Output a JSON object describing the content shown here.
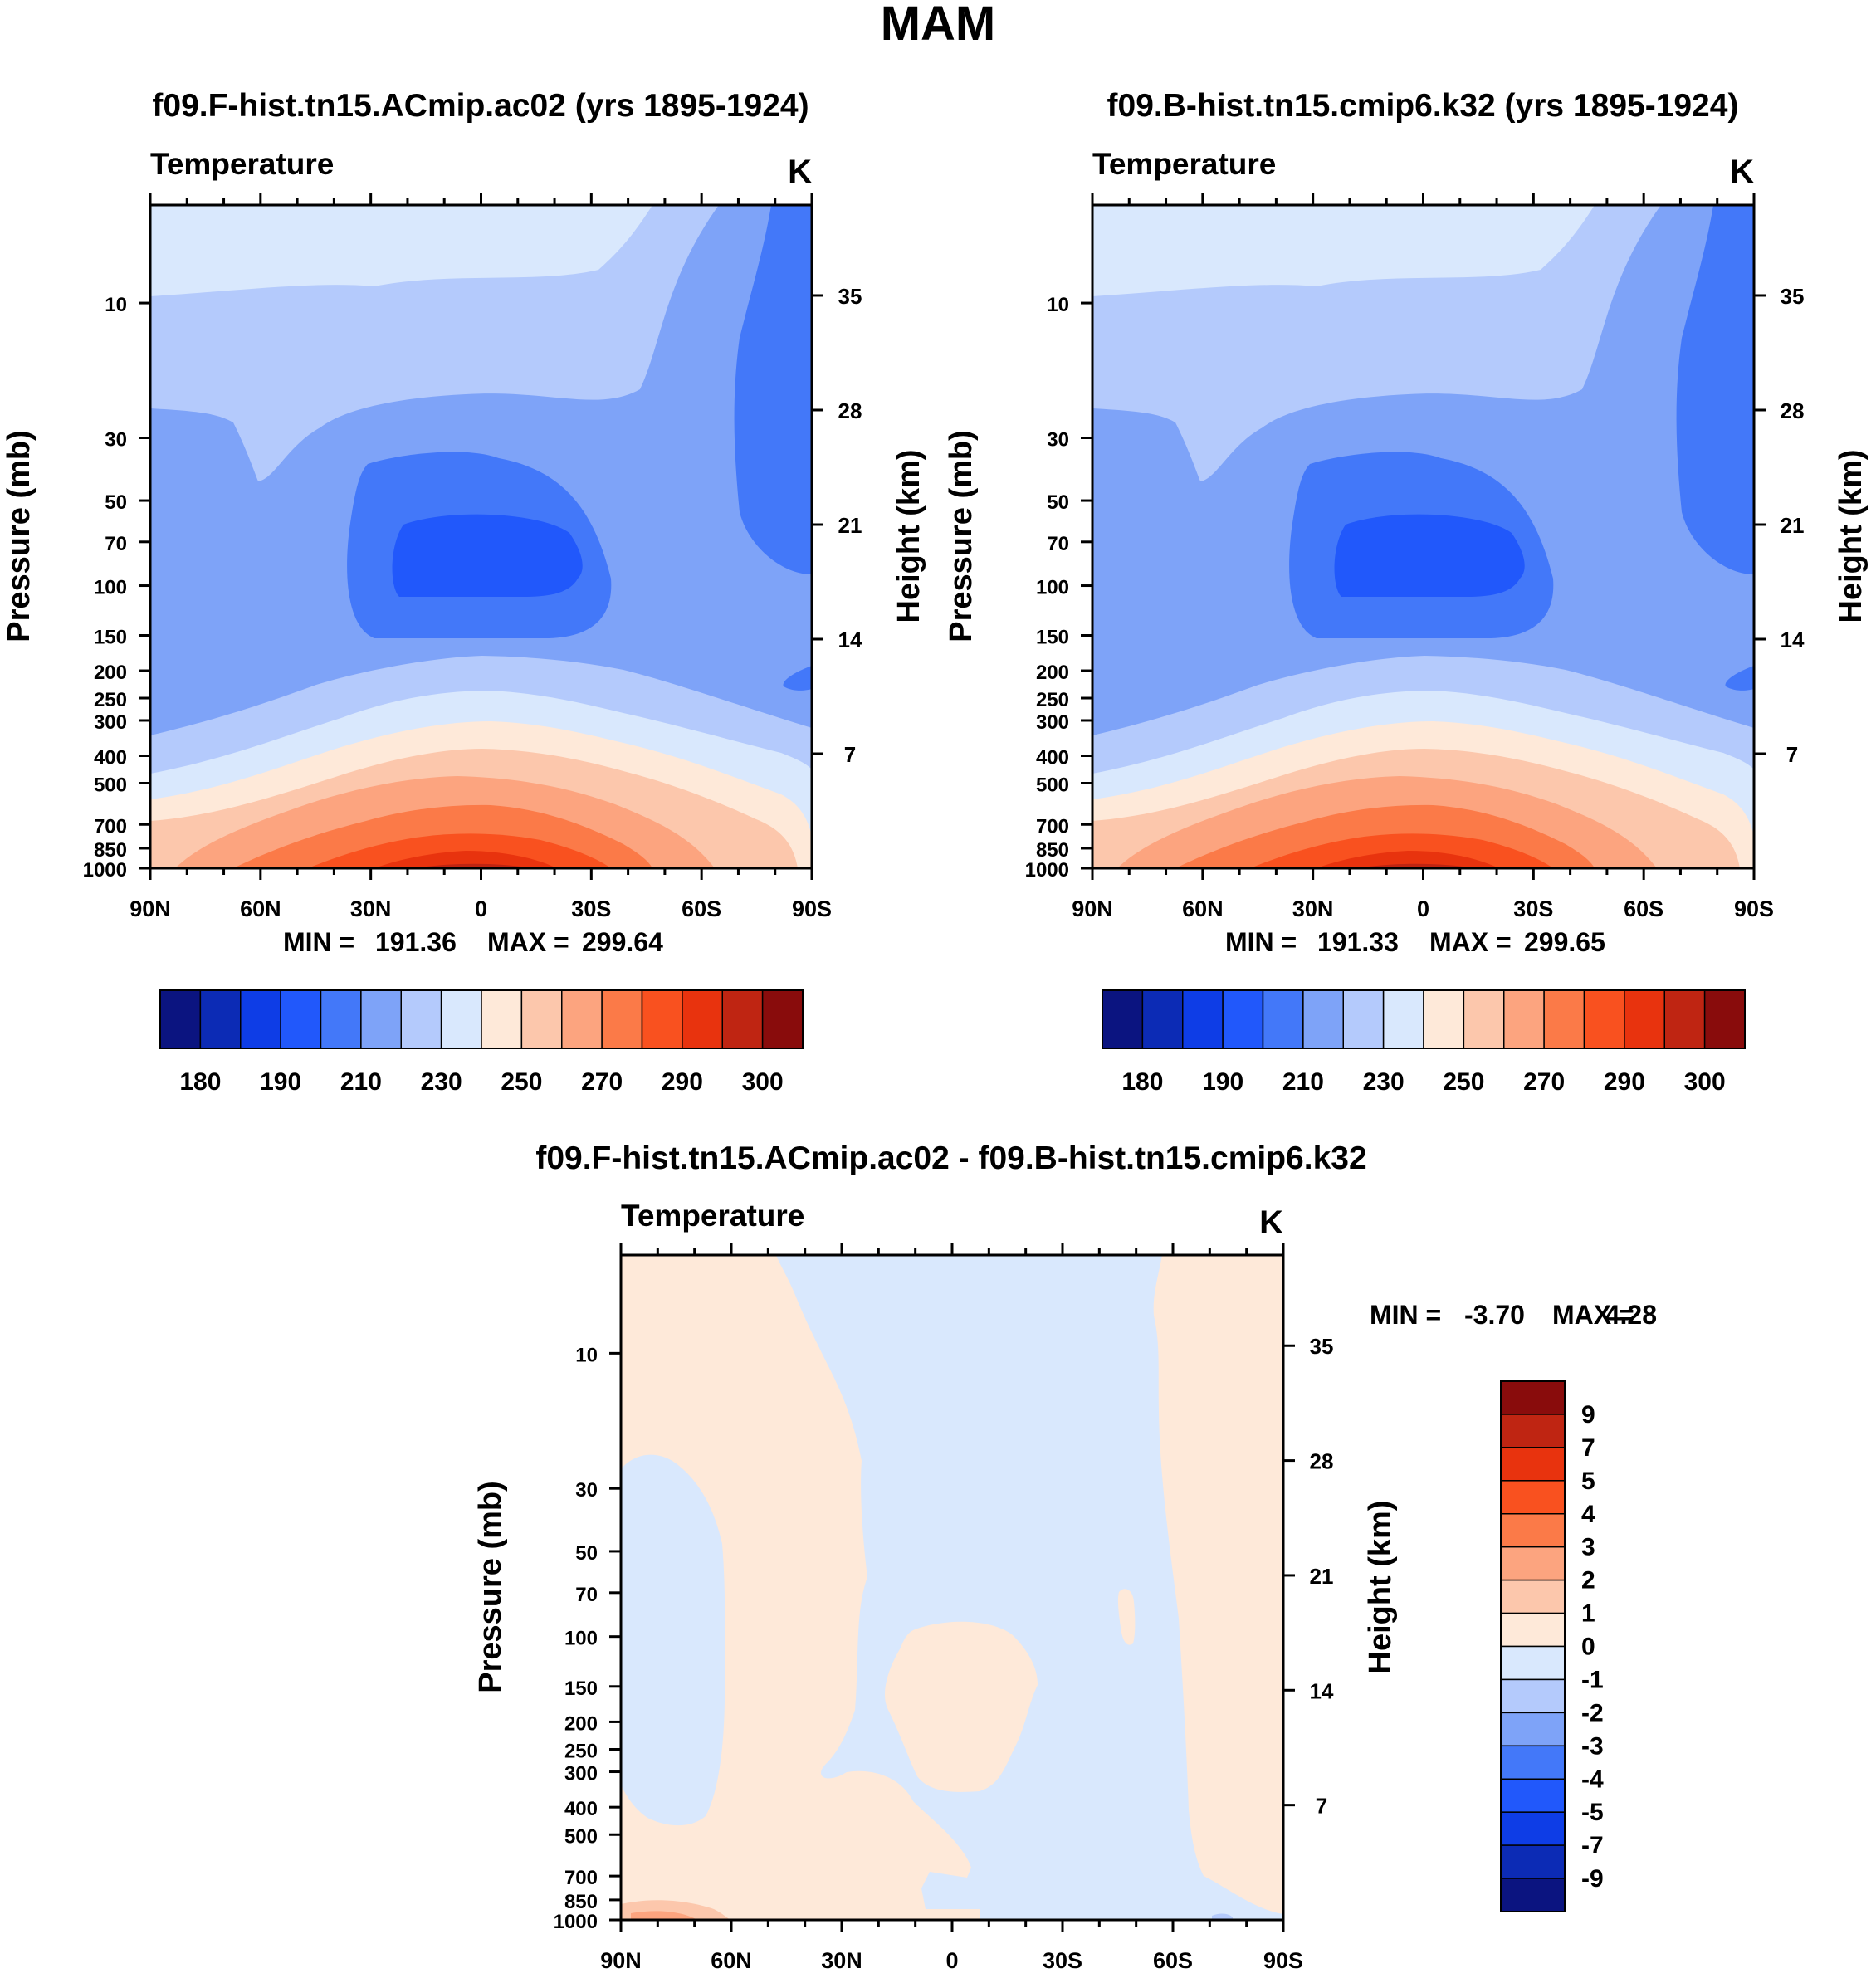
{
  "title": "MAM",
  "chart_data": [
    {
      "type": "contour",
      "title": "f09.F-hist.tn15.ACmip.ac02 (yrs 1895-1924)",
      "variable": "Temperature",
      "units": "K",
      "xlabel": "",
      "ylabel": "Pressure (mb)",
      "ylabel_right": "Height (km)",
      "x_ticks": [
        "90N",
        "60N",
        "30N",
        "0",
        "30S",
        "60S",
        "90S"
      ],
      "x_values": [
        90,
        60,
        30,
        0,
        -30,
        -60,
        -90
      ],
      "pressure_ticks": [
        10,
        30,
        50,
        70,
        100,
        150,
        200,
        250,
        300,
        400,
        500,
        700,
        850,
        1000
      ],
      "height_ticks": [
        35,
        28,
        21,
        14,
        7
      ],
      "ylim": [
        1000,
        4.5
      ],
      "min": "191.36",
      "max": "299.64",
      "min_label": "MIN =",
      "max_label": "MAX =",
      "levels": [
        180,
        185,
        190,
        200,
        210,
        220,
        230,
        240,
        250,
        260,
        270,
        280,
        290,
        295,
        300
      ],
      "colorbar_labels": [
        "180",
        "190",
        "210",
        "230",
        "250",
        "270",
        "290",
        "300"
      ]
    },
    {
      "type": "contour",
      "title": "f09.B-hist.tn15.cmip6.k32 (yrs 1895-1924)",
      "variable": "Temperature",
      "units": "K",
      "xlabel": "",
      "ylabel": "Pressure (mb)",
      "ylabel_right": "Height (km)",
      "x_ticks": [
        "90N",
        "60N",
        "30N",
        "0",
        "30S",
        "60S",
        "90S"
      ],
      "x_values": [
        90,
        60,
        30,
        0,
        -30,
        -60,
        -90
      ],
      "pressure_ticks": [
        10,
        30,
        50,
        70,
        100,
        150,
        200,
        250,
        300,
        400,
        500,
        700,
        850,
        1000
      ],
      "height_ticks": [
        35,
        28,
        21,
        14,
        7
      ],
      "ylim": [
        1000,
        4.5
      ],
      "min": "191.33",
      "max": "299.65",
      "min_label": "MIN =",
      "max_label": "MAX =",
      "levels": [
        180,
        185,
        190,
        200,
        210,
        220,
        230,
        240,
        250,
        260,
        270,
        280,
        290,
        295,
        300
      ],
      "colorbar_labels": [
        "180",
        "190",
        "210",
        "230",
        "250",
        "270",
        "290",
        "300"
      ]
    },
    {
      "type": "contour",
      "title": "f09.F-hist.tn15.ACmip.ac02 - f09.B-hist.tn15.cmip6.k32",
      "variable": "Temperature",
      "units": "K",
      "xlabel": "",
      "ylabel": "Pressure (mb)",
      "ylabel_right": "Height (km)",
      "x_ticks": [
        "90N",
        "60N",
        "30N",
        "0",
        "30S",
        "60S",
        "90S"
      ],
      "x_values": [
        90,
        60,
        30,
        0,
        -30,
        -60,
        -90
      ],
      "pressure_ticks": [
        10,
        30,
        50,
        70,
        100,
        150,
        200,
        250,
        300,
        400,
        500,
        700,
        850,
        1000
      ],
      "height_ticks": [
        35,
        28,
        21,
        14,
        7
      ],
      "ylim": [
        1000,
        4.5
      ],
      "min": "-3.70",
      "max": "4.28",
      "min_label": "MIN =",
      "max_label": "MAX =",
      "levels": [
        -9,
        -7,
        -5,
        -4,
        -3,
        -2,
        -1,
        0,
        1,
        2,
        3,
        4,
        5,
        7,
        9
      ],
      "colorbar_labels": [
        "9",
        "7",
        "5",
        "4",
        "3",
        "2",
        "1",
        "0",
        "-1",
        "-2",
        "-3",
        "-4",
        "-5",
        "-7",
        "-9"
      ]
    }
  ],
  "colors": {
    "palette": [
      "#0b1480",
      "#0c2bb5",
      "#0e3de6",
      "#2158fb",
      "#4378f9",
      "#7ea3f8",
      "#b4cafc",
      "#d9e8fd",
      "#fee9d9",
      "#fcc7ac",
      "#fca47f",
      "#fb7a48",
      "#f9511f",
      "#e8330e",
      "#bf2512",
      "#890c0c"
    ]
  }
}
